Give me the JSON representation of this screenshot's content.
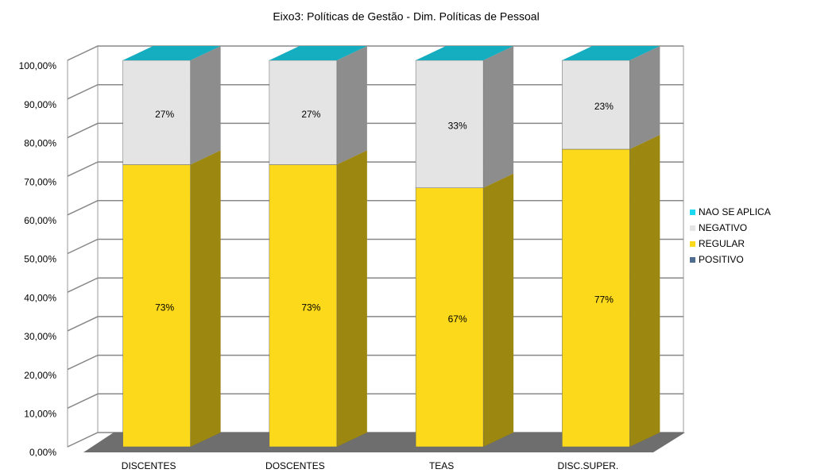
{
  "chart_data": {
    "type": "bar3d_stacked",
    "title": "Eixo3: Políticas de Gestão - Dim. Políticas de Pessoal",
    "categories": [
      "DISCENTES",
      "DOSCENTES",
      "TEAS",
      "DISC.SUPER."
    ],
    "series": [
      {
        "name": "POSITIVO",
        "color": "#4f6d8f",
        "values": [
          0,
          0,
          0,
          0
        ]
      },
      {
        "name": "REGULAR",
        "color": "#fcd91a",
        "values": [
          73,
          73,
          67,
          77
        ],
        "value_labels": [
          "73%",
          "73%",
          "67%",
          "77%"
        ]
      },
      {
        "name": "NEGATIVO",
        "color": "#e4e4e4",
        "values": [
          27,
          27,
          33,
          23
        ],
        "value_labels": [
          "27%",
          "27%",
          "33%",
          "23%"
        ]
      },
      {
        "name": "NAO SE APLICA",
        "color": "#1ad9f0",
        "values": [
          0,
          0,
          0,
          0
        ]
      }
    ],
    "ylim": [
      0,
      100
    ],
    "yticks": [
      {
        "value": 0,
        "label": "0,00%"
      },
      {
        "value": 10,
        "label": "10,00%"
      },
      {
        "value": 20,
        "label": "20,00%"
      },
      {
        "value": 30,
        "label": "30,00%"
      },
      {
        "value": 40,
        "label": "40,00%"
      },
      {
        "value": 50,
        "label": "50,00%"
      },
      {
        "value": 60,
        "label": "60,00%"
      },
      {
        "value": 70,
        "label": "70,00%"
      },
      {
        "value": 80,
        "label": "80,00%"
      },
      {
        "value": 90,
        "label": "90,00%"
      },
      {
        "value": 100,
        "label": "100,00%"
      }
    ],
    "grid": true,
    "legend": "right"
  }
}
